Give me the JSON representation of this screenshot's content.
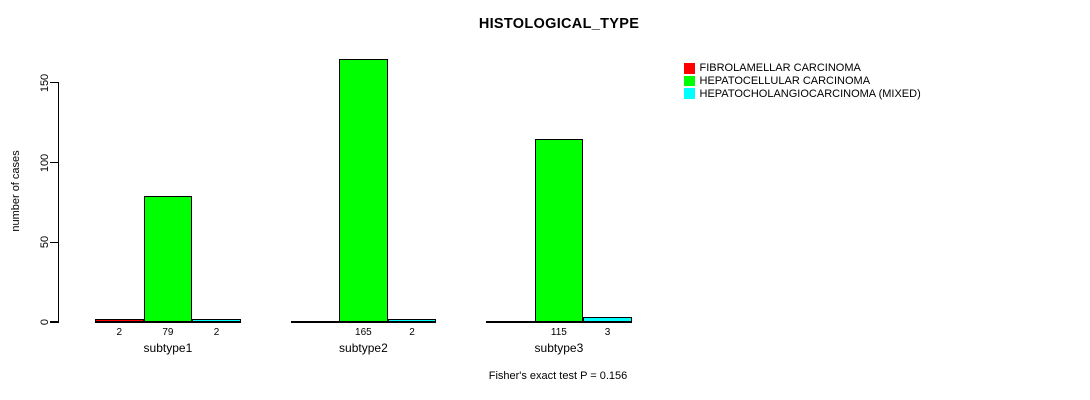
{
  "title": "HISTOLOGICAL_TYPE",
  "y_axis": {
    "label": "number of cases",
    "tick_labels": [
      "0",
      "50",
      "100",
      "150"
    ]
  },
  "legend": {
    "items": [
      {
        "label": "FIBROLAMELLAR CARCINOMA",
        "color": "#ff0000"
      },
      {
        "label": "HEPATOCELLULAR CARCINOMA",
        "color": "#00ff00"
      },
      {
        "label": "HEPATOCHOLANGIOCARCINOMA (MIXED)",
        "color": "#00ffff"
      }
    ]
  },
  "footer": "Fisher's exact test P = 0.156",
  "chart_data": {
    "type": "bar",
    "title": "HISTOLOGICAL_TYPE",
    "categories": [
      "subtype1",
      "subtype2",
      "subtype3"
    ],
    "series": [
      {
        "name": "FIBROLAMELLAR CARCINOMA",
        "color": "#ff0000",
        "values": [
          2,
          0,
          0
        ]
      },
      {
        "name": "HEPATOCELLULAR CARCINOMA",
        "color": "#00ff00",
        "values": [
          79,
          165,
          115
        ]
      },
      {
        "name": "HEPATOCHOLANGIOCARCINOMA (MIXED)",
        "color": "#00ffff",
        "values": [
          2,
          2,
          3
        ]
      }
    ],
    "bar_value_labels_shown": true,
    "ylabel": "number of cases",
    "xlabel": "",
    "yticks": [
      0,
      50,
      100,
      150
    ],
    "ylim": [
      0,
      165
    ],
    "grid": false,
    "bar_border_color": "#000000",
    "legend_position": "top-right",
    "annotation": "Fisher's exact test P = 0.156"
  }
}
